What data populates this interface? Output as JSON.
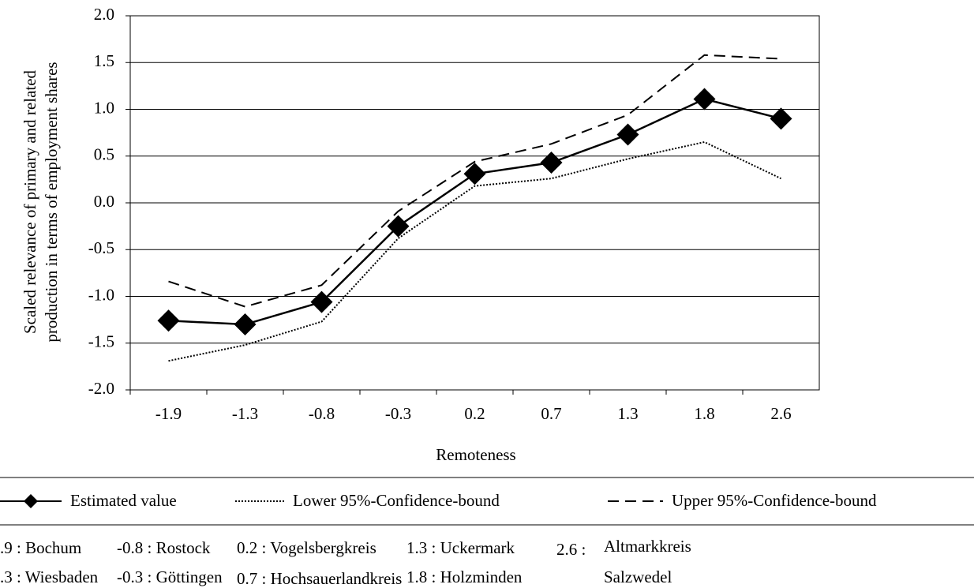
{
  "chart_data": {
    "type": "line",
    "y_label": [
      "Scaled relevance of primary and related",
      "production in terms of employment shares"
    ],
    "x_label": "Remoteness",
    "categories": [
      "-1.9",
      "-1.3",
      "-0.8",
      "-0.3",
      "0.2",
      "0.7",
      "1.3",
      "1.8",
      "2.6"
    ],
    "series": [
      {
        "name": "Estimated value",
        "color": "#000000",
        "style": "solid",
        "marker": "diamond",
        "values": [
          -1.26,
          -1.3,
          -1.06,
          -0.25,
          0.31,
          0.43,
          0.73,
          1.11,
          0.9
        ]
      },
      {
        "name": "Lower 95%-Confidence-bound",
        "color": "#000000",
        "style": "dotted",
        "values": [
          -1.69,
          -1.52,
          -1.27,
          -0.38,
          0.18,
          0.26,
          0.47,
          0.65,
          0.26
        ]
      },
      {
        "name": "Upper 95%-Confidence-bound",
        "color": "#000000",
        "style": "dashed",
        "values": [
          -0.84,
          -1.11,
          -0.88,
          -0.09,
          0.44,
          0.63,
          0.94,
          1.58,
          1.54
        ]
      }
    ],
    "ylim": [
      -2,
      2
    ],
    "yticks": [
      {
        "value": -2,
        "label": "-2.0"
      },
      -1.5,
      {
        "value": -1,
        "label": "-1.0"
      },
      -0.5,
      {
        "value": 0,
        "label": "0.0"
      },
      0.5,
      {
        "value": 1,
        "label": "1.0"
      },
      1.5,
      {
        "value": 2,
        "label": "2.0"
      }
    ],
    "grid": true,
    "notes": [
      ".9 : Bochum",
      ".3 : Wiesbaden",
      "-0.8 : Rostock",
      "-0.3 : Göttingen",
      "0.2 : Vogelsbergkreis",
      "0.7 : Hochsauerlandkreis",
      "1.3 : Uckermark",
      "1.8 : Holzminden",
      "2.6 :",
      "Altmarkkreis",
      "Salzwedel"
    ]
  }
}
